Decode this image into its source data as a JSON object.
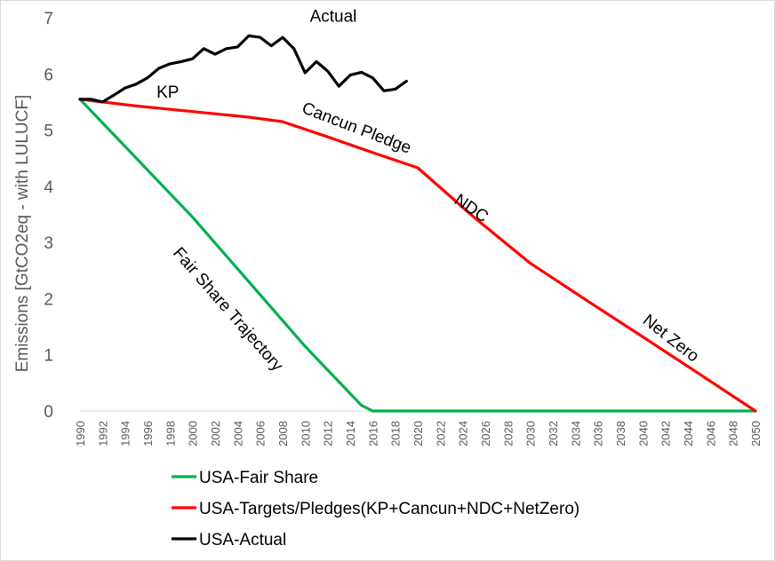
{
  "chart_data": {
    "type": "line",
    "title": "",
    "xlabel": "",
    "ylabel": "Emissions [GtCO2eq - with LULUCF]",
    "xlim": [
      1990,
      2050
    ],
    "ylim": [
      0,
      7
    ],
    "x_ticks": [
      "1990",
      "1992",
      "1994",
      "1996",
      "1998",
      "2000",
      "2002",
      "2004",
      "2006",
      "2008",
      "2010",
      "2012",
      "2014",
      "2016",
      "2018",
      "2020",
      "2022",
      "2024",
      "2026",
      "2028",
      "2030",
      "2032",
      "2034",
      "2036",
      "2038",
      "2040",
      "2042",
      "2044",
      "2046",
      "2048",
      "2050"
    ],
    "y_ticks": [
      "0",
      "1",
      "2",
      "3",
      "4",
      "5",
      "6",
      "7"
    ],
    "grid": false,
    "legend_position": "bottom-left",
    "series": [
      {
        "name": "USA-Fair Share",
        "color": "#00b050",
        "x": [
          1990,
          1995,
          2000,
          2005,
          2010,
          2015,
          2016,
          2050
        ],
        "y": [
          5.55,
          4.5,
          3.45,
          2.3,
          1.15,
          0.1,
          0,
          0
        ]
      },
      {
        "name": "USA-Targets/Pledges(KP+Cancun+NDC+NetZero)",
        "color": "#ff0000",
        "x": [
          1990,
          1992,
          1995,
          2000,
          2005,
          2008,
          2012,
          2016,
          2020,
          2025,
          2030,
          2035,
          2040,
          2045,
          2050
        ],
        "y": [
          5.55,
          5.5,
          5.43,
          5.33,
          5.23,
          5.15,
          4.88,
          4.6,
          4.33,
          3.45,
          2.63,
          1.97,
          1.32,
          0.66,
          0
        ]
      },
      {
        "name": "USA-Actual",
        "color": "#000000",
        "x": [
          1990,
          1991,
          1992,
          1993,
          1994,
          1995,
          1996,
          1997,
          1998,
          1999,
          2000,
          2001,
          2002,
          2003,
          2004,
          2005,
          2006,
          2007,
          2008,
          2009,
          2010,
          2011,
          2012,
          2013,
          2014,
          2015,
          2016,
          2017,
          2018,
          2019
        ],
        "y": [
          5.55,
          5.55,
          5.5,
          5.62,
          5.75,
          5.82,
          5.93,
          6.1,
          6.18,
          6.22,
          6.27,
          6.45,
          6.35,
          6.45,
          6.48,
          6.68,
          6.65,
          6.5,
          6.65,
          6.45,
          6.02,
          6.22,
          6.05,
          5.78,
          5.98,
          6.03,
          5.93,
          5.7,
          5.73,
          5.87
        ]
      }
    ],
    "annotations": [
      {
        "id": "actual",
        "text": "Actual",
        "x": 2012.5,
        "y": 6.93,
        "rotation": 0
      },
      {
        "id": "kp",
        "text": "KP",
        "x": 1997.8,
        "y": 5.58,
        "rotation": 0
      },
      {
        "id": "cancun",
        "text": "Cancun Pledge",
        "x": 2014.4,
        "y": 4.95,
        "rotation": 21
      },
      {
        "id": "ndc",
        "text": "NDC",
        "x": 2024.5,
        "y": 3.53,
        "rotation": 34
      },
      {
        "id": "netzero",
        "text": "Net Zero",
        "x": 2042.2,
        "y": 1.22,
        "rotation": 38
      },
      {
        "id": "fairshare",
        "text": "Fair Share Trajectory",
        "x": 2002.8,
        "y": 1.75,
        "rotation": 49
      }
    ]
  }
}
